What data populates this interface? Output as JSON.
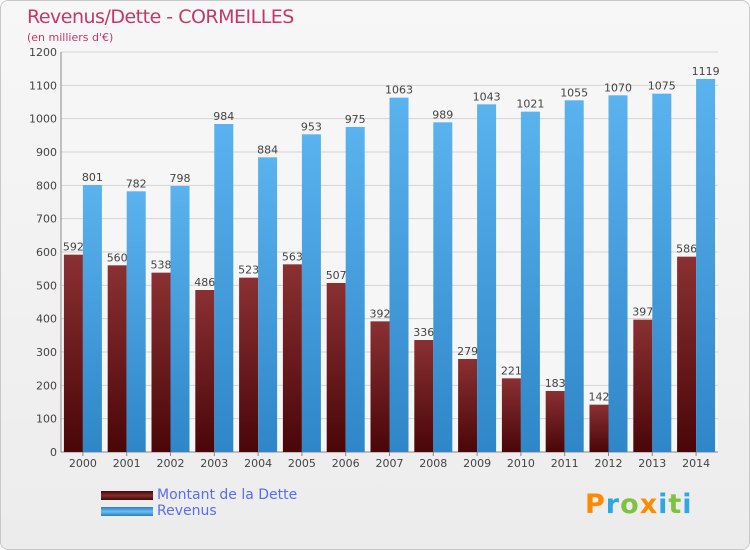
{
  "header": {
    "title": "Revenus/Dette - CORMEILLES",
    "subtitle": "(en milliers d'€)"
  },
  "logo": {
    "letters": [
      "P",
      "r",
      "o",
      "x",
      "i",
      "t",
      "i"
    ],
    "colors": [
      "#ff8a00",
      "#2da8e0",
      "#7fc241",
      "#ff8a00",
      "#2da8e0",
      "#7fc241",
      "#2da8e0"
    ]
  },
  "chart_data": {
    "type": "bar",
    "categories": [
      "2000",
      "2001",
      "2002",
      "2003",
      "2004",
      "2005",
      "2006",
      "2007",
      "2008",
      "2009",
      "2010",
      "2011",
      "2012",
      "2013",
      "2014"
    ],
    "series": [
      {
        "name": "Montant de la Dette",
        "color": "#6b1e20",
        "values": [
          592,
          560,
          538,
          486,
          523,
          563,
          507,
          392,
          336,
          279,
          221,
          183,
          142,
          397,
          586
        ]
      },
      {
        "name": "Revenus",
        "color": "#4da6e8",
        "values": [
          801,
          782,
          798,
          984,
          884,
          953,
          975,
          1063,
          989,
          1043,
          1021,
          1055,
          1070,
          1075,
          1119
        ]
      }
    ],
    "ylim": [
      0,
      1200
    ],
    "yticks": [
      0,
      100,
      200,
      300,
      400,
      500,
      600,
      700,
      800,
      900,
      1000,
      1100,
      1200
    ],
    "grid": true,
    "legend_position": "bottom-left"
  }
}
